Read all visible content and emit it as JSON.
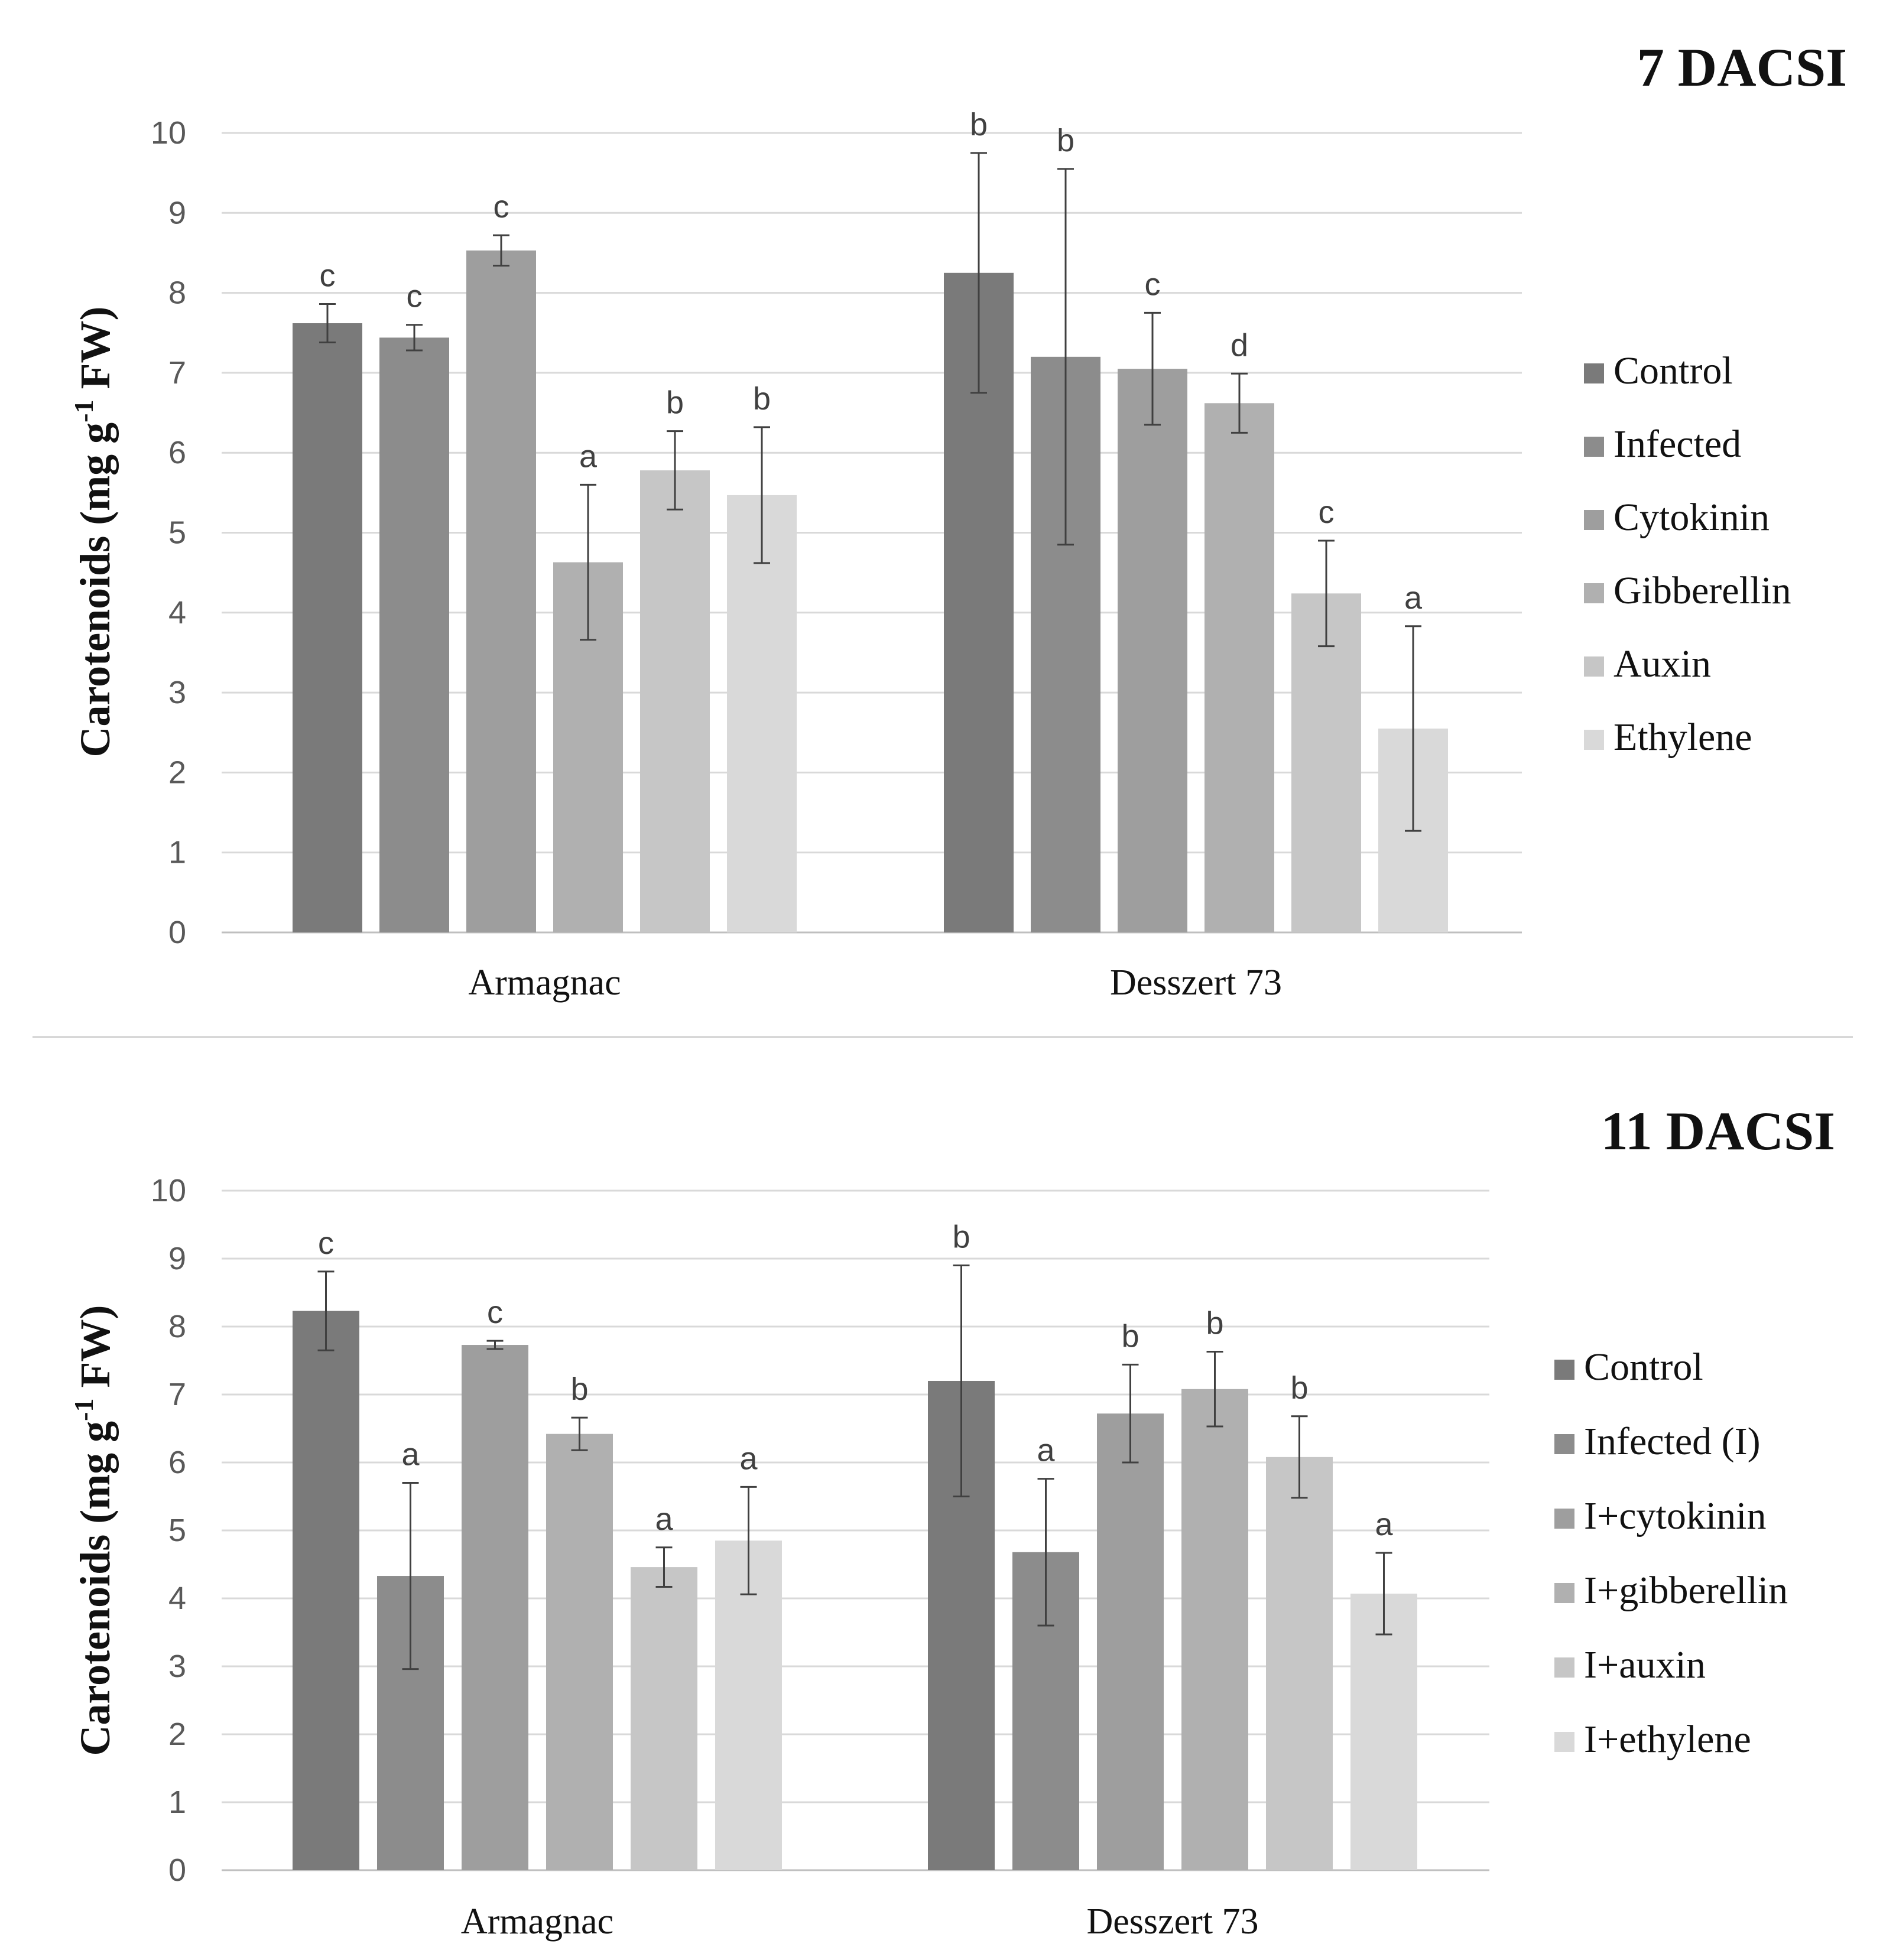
{
  "chart_data": [
    {
      "type": "bar",
      "title": "7 DACSI",
      "ylabel_main": "Carotenoids (mg g",
      "ylabel_sup": "-1",
      "ylabel_tail": " FW)",
      "xlabel": "",
      "ylim": [
        0,
        10
      ],
      "yticks": [
        "0",
        "1",
        "2",
        "3",
        "4",
        "5",
        "6",
        "7",
        "8",
        "9",
        "10"
      ],
      "categories": [
        "Armagnac",
        "Desszert 73"
      ],
      "legend_position": "right",
      "series": [
        {
          "name": "Control",
          "color": "#7a7a7a",
          "values": [
            7.62,
            8.25
          ],
          "errors": [
            0.24,
            1.5
          ],
          "letters": [
            "c",
            "b"
          ]
        },
        {
          "name": "Infected",
          "color": "#8c8c8c",
          "values": [
            7.44,
            7.2
          ],
          "errors": [
            0.16,
            2.35
          ],
          "letters": [
            "c",
            "b"
          ]
        },
        {
          "name": "Cytokinin",
          "color": "#9e9e9e",
          "values": [
            8.53,
            7.05
          ],
          "errors": [
            0.19,
            0.7
          ],
          "letters": [
            "c",
            "c"
          ]
        },
        {
          "name": "Gibberellin",
          "color": "#b0b0b0",
          "values": [
            4.63,
            6.62
          ],
          "errors": [
            0.97,
            0.37
          ],
          "letters": [
            "a",
            "d"
          ]
        },
        {
          "name": "Auxin",
          "color": "#c6c6c6",
          "values": [
            5.78,
            4.24
          ],
          "errors": [
            0.49,
            0.66
          ],
          "letters": [
            "b",
            "c"
          ]
        },
        {
          "name": "Ethylene",
          "color": "#d9d9d9",
          "values": [
            5.47,
            2.55
          ],
          "errors": [
            0.85,
            1.28
          ],
          "letters": [
            "b",
            "a"
          ]
        }
      ]
    },
    {
      "type": "bar",
      "title": "11 DACSI",
      "ylabel_main": "Carotenoids (mg g",
      "ylabel_sup": "-1",
      "ylabel_tail": " FW)",
      "xlabel": "",
      "ylim": [
        0,
        10
      ],
      "yticks": [
        "0",
        "1",
        "2",
        "3",
        "4",
        "5",
        "6",
        "7",
        "8",
        "9",
        "10"
      ],
      "categories": [
        "Armagnac",
        "Desszert 73"
      ],
      "legend_position": "right",
      "series": [
        {
          "name": "Control",
          "color": "#7a7a7a",
          "values": [
            8.23,
            7.2
          ],
          "errors": [
            0.58,
            1.7
          ],
          "letters": [
            "c",
            "b"
          ]
        },
        {
          "name": "Infected (I)",
          "color": "#8c8c8c",
          "values": [
            4.33,
            4.68
          ],
          "errors": [
            1.37,
            1.08
          ],
          "letters": [
            "a",
            "a"
          ]
        },
        {
          "name": "I+cytokinin",
          "color": "#9e9e9e",
          "values": [
            7.73,
            6.72
          ],
          "errors": [
            0.06,
            0.72
          ],
          "letters": [
            "c",
            "b"
          ]
        },
        {
          "name": "I+gibberellin",
          "color": "#b0b0b0",
          "values": [
            6.42,
            7.08
          ],
          "errors": [
            0.24,
            0.55
          ],
          "letters": [
            "b",
            "b"
          ]
        },
        {
          "name": "I+auxin",
          "color": "#c6c6c6",
          "values": [
            4.46,
            6.08
          ],
          "errors": [
            0.29,
            0.6
          ],
          "letters": [
            "a",
            "b"
          ]
        },
        {
          "name": "I+ethylene",
          "color": "#d9d9d9",
          "values": [
            4.85,
            4.07
          ],
          "errors": [
            0.79,
            0.6
          ],
          "letters": [
            "a",
            "a"
          ]
        }
      ]
    }
  ]
}
